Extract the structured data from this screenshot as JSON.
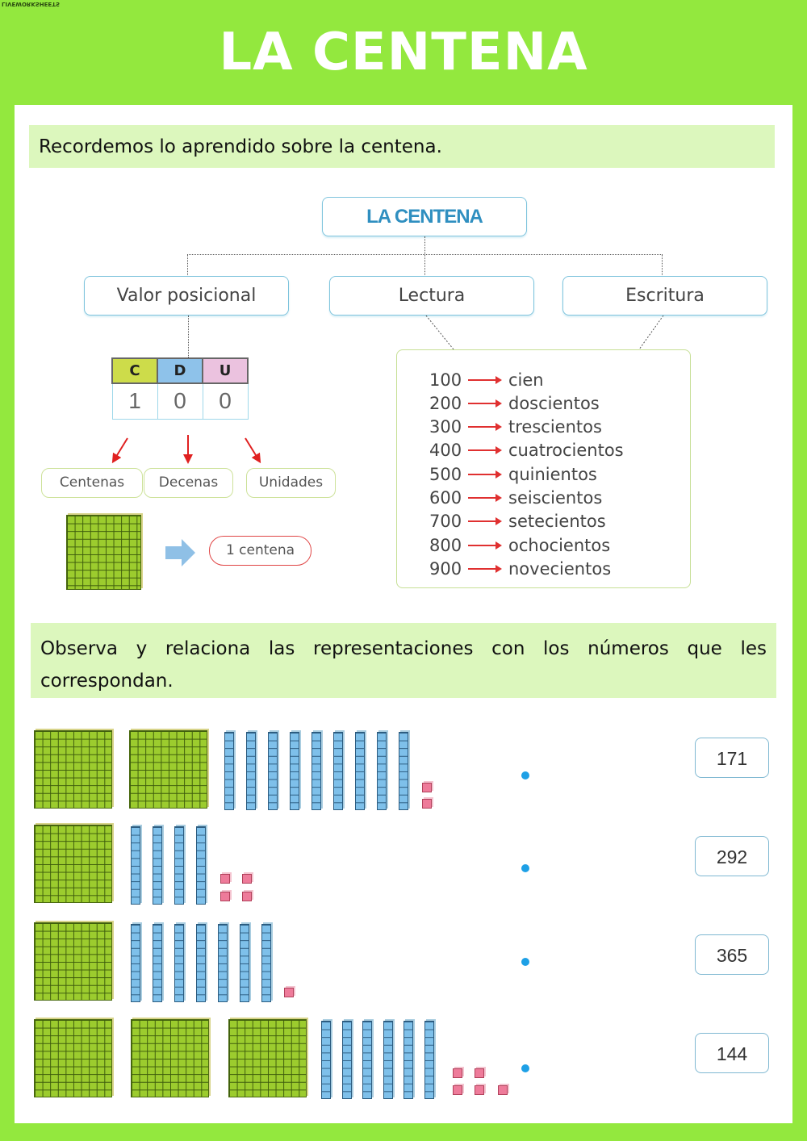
{
  "watermark": "LIVEWORKSHEETS",
  "title": "LA CENTENA",
  "intro": "Recordemos lo aprendido sobre la centena.",
  "concept_map": {
    "title": "LA CENTENA",
    "categories": [
      "Valor posicional",
      "Lectura",
      "Escritura"
    ],
    "place_value": {
      "headers": [
        "C",
        "D",
        "U"
      ],
      "header_colors": [
        "#cddc4a",
        "#8ec2ea",
        "#ebc2df"
      ],
      "digits": [
        "1",
        "0",
        "0"
      ],
      "labels": [
        "Centenas",
        "Decenas",
        "Unidades"
      ],
      "equivalence": "1 centena"
    },
    "readings": [
      {
        "number": "100",
        "word": "cien"
      },
      {
        "number": "200",
        "word": "doscientos"
      },
      {
        "number": "300",
        "word": "trescientos"
      },
      {
        "number": "400",
        "word": "cuatrocientos"
      },
      {
        "number": "500",
        "word": "quinientos"
      },
      {
        "number": "600",
        "word": "seiscientos"
      },
      {
        "number": "700",
        "word": "setecientos"
      },
      {
        "number": "800",
        "word": "ochocientos"
      },
      {
        "number": "900",
        "word": "novecientos"
      }
    ]
  },
  "exercise": {
    "instruction": "Observa y relaciona las representaciones con los números que les correspondan.",
    "representations": [
      {
        "hundreds": 2,
        "tens": 9,
        "units": 2
      },
      {
        "hundreds": 1,
        "tens": 4,
        "units": 4
      },
      {
        "hundreds": 1,
        "tens": 7,
        "units": 1
      },
      {
        "hundreds": 3,
        "tens": 6,
        "units": 5
      }
    ],
    "numbers": [
      "171",
      "292",
      "365",
      "144"
    ]
  },
  "colors": {
    "background": "#93e83e",
    "band": "#dcf7bd",
    "dot": "#1ea0e6"
  }
}
